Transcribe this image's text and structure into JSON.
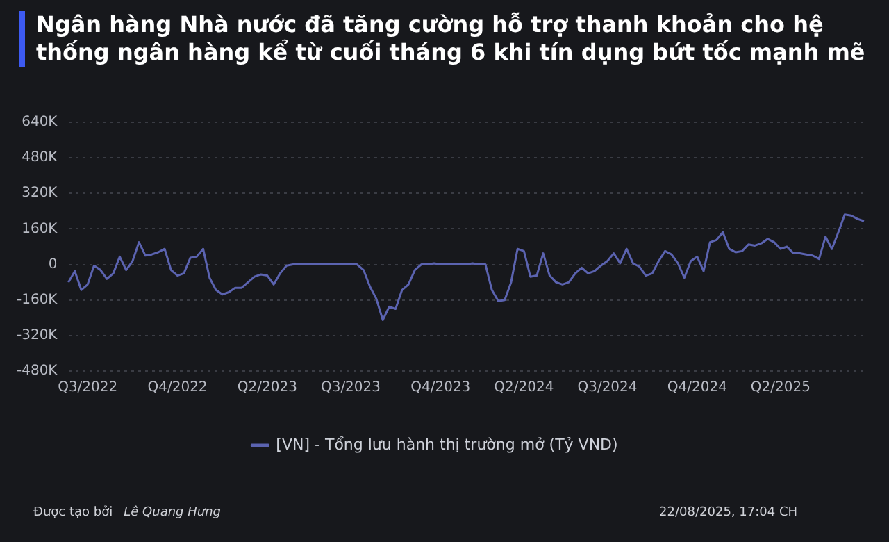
{
  "chart_data": {
    "type": "line",
    "title": "Ngân hàng Nhà nước đã tăng cường hỗ trợ thanh khoản cho hệ thống ngân hàng kể từ cuối tháng 6 khi tín dụng bứt tốc mạnh mẽ",
    "categories": [
      null,
      null,
      null,
      "Q3/2022",
      null,
      null,
      null,
      null,
      null,
      null,
      null,
      null,
      null,
      null,
      null,
      null,
      null,
      "Q4/2022",
      null,
      null,
      null,
      null,
      null,
      null,
      null,
      null,
      null,
      null,
      null,
      null,
      null,
      "Q2/2023",
      null,
      null,
      null,
      null,
      null,
      null,
      null,
      null,
      null,
      null,
      null,
      null,
      "Q3/2023",
      null,
      null,
      null,
      null,
      null,
      null,
      null,
      null,
      null,
      null,
      null,
      null,
      null,
      "Q4/2023",
      null,
      null,
      null,
      null,
      null,
      null,
      null,
      null,
      null,
      null,
      null,
      null,
      "Q2/2024",
      null,
      null,
      null,
      null,
      null,
      null,
      null,
      null,
      null,
      null,
      null,
      null,
      "Q3/2024",
      null,
      null,
      null,
      null,
      null,
      null,
      null,
      null,
      null,
      null,
      null,
      null,
      null,
      "Q4/2024",
      null,
      null,
      null,
      null,
      null,
      null,
      null,
      null,
      null,
      null,
      null,
      null,
      "Q2/2025",
      null,
      null,
      null,
      null,
      null,
      null,
      null,
      null,
      null,
      null,
      null,
      null,
      null
    ],
    "series": [
      {
        "name": "[VN] - Tổng lưu hành thị trường mở (Tỷ VND)",
        "color": "#5b63b0",
        "values": [
          -80,
          -30,
          -115,
          -90,
          -5,
          -25,
          -65,
          -40,
          35,
          -25,
          15,
          100,
          40,
          45,
          55,
          70,
          -25,
          -50,
          -40,
          30,
          35,
          70,
          -60,
          -115,
          -135,
          -125,
          -105,
          -105,
          -80,
          -55,
          -45,
          -50,
          -90,
          -40,
          -5,
          0,
          0,
          0,
          0,
          0,
          0,
          0,
          0,
          0,
          0,
          0,
          -25,
          -100,
          -155,
          -250,
          -190,
          -200,
          -115,
          -90,
          -25,
          0,
          0,
          5,
          0,
          0,
          0,
          0,
          0,
          5,
          0,
          0,
          -115,
          -165,
          -160,
          -80,
          70,
          60,
          -55,
          -50,
          50,
          -50,
          -80,
          -90,
          -80,
          -40,
          -15,
          -40,
          -30,
          -5,
          15,
          50,
          5,
          70,
          5,
          -10,
          -50,
          -40,
          15,
          60,
          45,
          5,
          -60,
          15,
          35,
          -30,
          100,
          110,
          145,
          70,
          55,
          60,
          90,
          85,
          95,
          115,
          100,
          70,
          80,
          50,
          50,
          45,
          40,
          25,
          125,
          70,
          145,
          225,
          220,
          205,
          195
        ]
      }
    ],
    "ylim": [
      -480,
      640
    ],
    "yticks": [
      {
        "value": -480,
        "label": "-480K"
      },
      {
        "value": -320,
        "label": "-320K"
      },
      {
        "value": -160,
        "label": "-160K"
      },
      0,
      {
        "value": 160,
        "label": "160K"
      },
      {
        "value": 320,
        "label": "320K"
      },
      {
        "value": 480,
        "label": "480K"
      },
      {
        "value": 640,
        "label": "640K"
      }
    ],
    "grid": "y",
    "legend": "bottom",
    "marker": "none",
    "line_style": "solid",
    "annotations": [
      "Được tạo bởi",
      "Lê Quang Hưng",
      "22/08/2025, 17:04 CH"
    ]
  }
}
